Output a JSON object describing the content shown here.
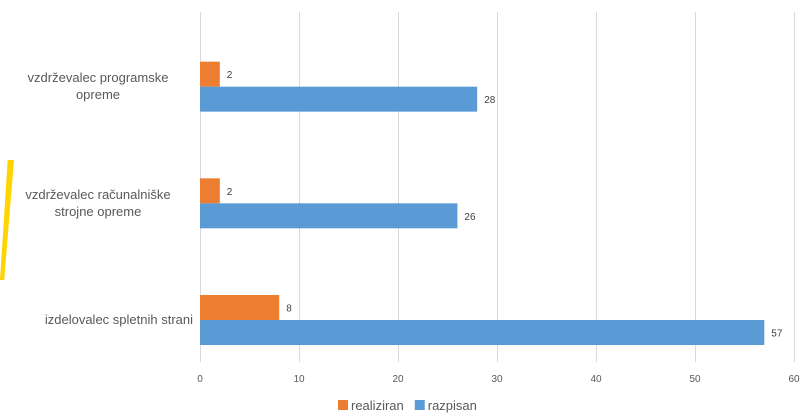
{
  "chart_data": {
    "type": "bar",
    "orientation": "horizontal",
    "categories": [
      [
        "vzdrževalec programske",
        "opreme"
      ],
      [
        "vzdrževalec računalniške",
        "strojne opreme"
      ],
      [
        "izdelovalec spletnih strani"
      ]
    ],
    "series": [
      {
        "name": "realiziran",
        "color": "#ed7d31",
        "values": [
          2,
          2,
          8
        ]
      },
      {
        "name": "razpisan",
        "color": "#5b9bd5",
        "values": [
          28,
          26,
          57
        ]
      }
    ],
    "xlim": [
      0,
      60
    ],
    "xticks": [
      0,
      10,
      20,
      30,
      40,
      50,
      60
    ],
    "grid": "vertical",
    "legend": "bottom-center",
    "data_labels": true
  }
}
